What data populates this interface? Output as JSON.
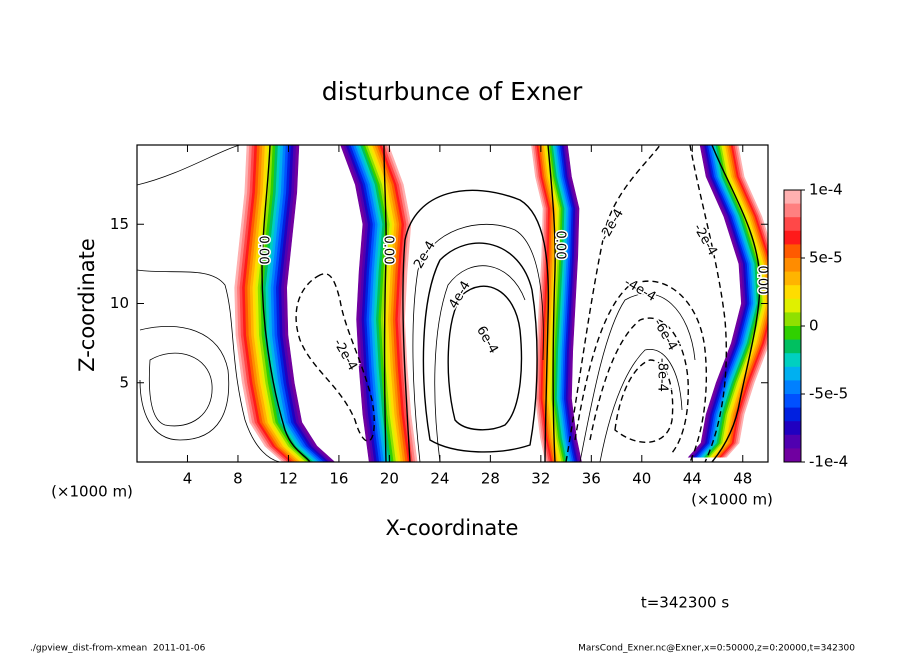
{
  "chart_data": {
    "type": "contour",
    "title": "disturbunce of Exner",
    "xlabel": "X-coordinate",
    "ylabel": "Z-coordinate",
    "xunit": "(×1000 m)",
    "yunit": "(×1000 m)",
    "xlim": [
      0,
      50
    ],
    "ylim": [
      0,
      20
    ],
    "xticks": [
      4,
      8,
      12,
      16,
      20,
      24,
      28,
      32,
      36,
      40,
      44,
      48
    ],
    "yticks": [
      5,
      10,
      15
    ],
    "clim": [
      -0.0001,
      0.0001
    ],
    "cticks": [
      {
        "value": 0.0001,
        "label": "1e-4"
      },
      {
        "value": 5e-05,
        "label": "5e-5"
      },
      0,
      {
        "value": -5e-05,
        "label": "-5e-5"
      },
      {
        "value": -0.0001,
        "label": "-1e-4"
      }
    ],
    "colors": [
      "#ffb0b0",
      "#ff8080",
      "#ff4848",
      "#ff1a1a",
      "#ff5a00",
      "#ff8c00",
      "#ffb400",
      "#ffdc00",
      "#e0f000",
      "#90e000",
      "#30d000",
      "#00c060",
      "#00d0c0",
      "#00b0f0",
      "#0080ff",
      "#0050ff",
      "#0020e0",
      "#2000c0",
      "#5000b0",
      "#7000a0"
    ],
    "contour_labels": [
      {
        "value": 0,
        "label": "0.00"
      },
      {
        "value": 0,
        "label": "0.00"
      },
      {
        "value": 0,
        "label": "0.00"
      },
      {
        "value": 0,
        "label": "0.00"
      },
      {
        "value": -0.0002,
        "label": "-2e-4"
      },
      {
        "value": 0.0002,
        "label": "2e-4"
      },
      {
        "value": 0.0004,
        "label": "4e-4"
      },
      {
        "value": 0.0006,
        "label": "6e-4"
      },
      {
        "value": -0.0002,
        "label": "-2e-4"
      },
      {
        "value": -0.0004,
        "label": "-4e-4"
      },
      {
        "value": -0.0006,
        "label": "-6e-4"
      },
      {
        "value": -0.0008,
        "label": "-8e-4"
      },
      {
        "value": -0.0002,
        "label": "-2e-4"
      }
    ],
    "time": "t=342300 s"
  },
  "footer": {
    "left": "./gpview_dist-from-xmean  2011-01-06",
    "right": "MarsCond_Exner.nc@Exner,x=0:50000,z=0:20000,t=342300"
  }
}
